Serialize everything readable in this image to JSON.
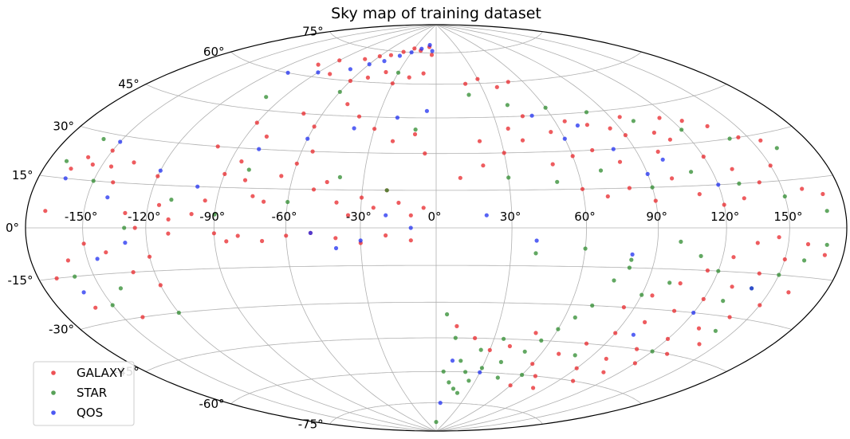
{
  "chart_data": {
    "type": "scatter",
    "projection": "aitoff-hammer",
    "title": "Sky map of training dataset",
    "x_ticks": [
      "-150°",
      "-120°",
      "-90°",
      "-60°",
      "-30°",
      "0°",
      "30°",
      "60°",
      "90°",
      "120°",
      "150°"
    ],
    "y_ticks": [
      "75°",
      "60°",
      "45°",
      "30°",
      "15°",
      "0°",
      "-15°",
      "-30°",
      "-45°",
      "-60°",
      "-75°"
    ],
    "xlim": [
      -180,
      180
    ],
    "ylim": [
      -90,
      90
    ],
    "grid": true,
    "legend_position": "lower-left",
    "series": [
      {
        "name": "GALAXY",
        "color": "#e8262a",
        "points": [
          [
            -170,
            5
          ],
          [
            -165,
            18
          ],
          [
            -160,
            22
          ],
          [
            -155,
            20
          ],
          [
            -150,
            25
          ],
          [
            -145,
            20
          ],
          [
            -140,
            15
          ],
          [
            -135,
            22
          ],
          [
            -130,
            5
          ],
          [
            -125,
            0
          ],
          [
            -120,
            18
          ],
          [
            -115,
            8
          ],
          [
            -110,
            -2
          ],
          [
            -160,
            -10
          ],
          [
            -150,
            -5
          ],
          [
            -140,
            -8
          ],
          [
            -130,
            -15
          ],
          [
            -120,
            -10
          ],
          [
            -110,
            3
          ],
          [
            -100,
            5
          ],
          [
            -95,
            10
          ],
          [
            -90,
            20
          ],
          [
            -85,
            25
          ],
          [
            -80,
            18
          ],
          [
            -75,
            12
          ],
          [
            -70,
            10
          ],
          [
            -65,
            20
          ],
          [
            -60,
            25
          ],
          [
            -55,
            30
          ],
          [
            -50,
            15
          ],
          [
            -45,
            18
          ],
          [
            -40,
            10
          ],
          [
            -35,
            5
          ],
          [
            -30,
            12
          ],
          [
            -25,
            8
          ],
          [
            -20,
            15
          ],
          [
            -15,
            10
          ],
          [
            -10,
            5
          ],
          [
            -5,
            8
          ],
          [
            -90,
            -2
          ],
          [
            -85,
            -5
          ],
          [
            -80,
            -3
          ],
          [
            -70,
            -5
          ],
          [
            -60,
            -3
          ],
          [
            -50,
            -2
          ],
          [
            -40,
            -4
          ],
          [
            -30,
            -6
          ],
          [
            -20,
            -3
          ],
          [
            -10,
            -5
          ],
          [
            -100,
            30
          ],
          [
            -90,
            40
          ],
          [
            -80,
            35
          ],
          [
            -70,
            45
          ],
          [
            -60,
            40
          ],
          [
            -50,
            50
          ],
          [
            -40,
            45
          ],
          [
            -30,
            40
          ],
          [
            -20,
            35
          ],
          [
            -10,
            38
          ],
          [
            -5,
            30
          ],
          [
            -60,
            60
          ],
          [
            -50,
            62
          ],
          [
            -40,
            65
          ],
          [
            -30,
            60
          ],
          [
            -20,
            63
          ],
          [
            -10,
            65
          ],
          [
            -70,
            70
          ],
          [
            -60,
            72
          ],
          [
            -50,
            73
          ],
          [
            -40,
            75
          ],
          [
            -30,
            77
          ],
          [
            -20,
            76
          ],
          [
            -10,
            78
          ],
          [
            -5,
            74
          ],
          [
            -80,
            62
          ],
          [
            -100,
            65
          ],
          [
            -90,
            68
          ],
          [
            10,
            20
          ],
          [
            20,
            25
          ],
          [
            30,
            30
          ],
          [
            40,
            35
          ],
          [
            50,
            25
          ],
          [
            60,
            28
          ],
          [
            70,
            30
          ],
          [
            80,
            25
          ],
          [
            90,
            35
          ],
          [
            100,
            28
          ],
          [
            110,
            32
          ],
          [
            120,
            25
          ],
          [
            130,
            20
          ],
          [
            140,
            15
          ],
          [
            150,
            20
          ],
          [
            160,
            12
          ],
          [
            170,
            10
          ],
          [
            20,
            35
          ],
          [
            35,
            40
          ],
          [
            45,
            45
          ],
          [
            55,
            38
          ],
          [
            65,
            42
          ],
          [
            75,
            40
          ],
          [
            85,
            38
          ],
          [
            95,
            42
          ],
          [
            105,
            35
          ],
          [
            115,
            40
          ],
          [
            125,
            38
          ],
          [
            135,
            35
          ],
          [
            145,
            30
          ],
          [
            155,
            28
          ],
          [
            60,
            15
          ],
          [
            70,
            12
          ],
          [
            80,
            15
          ],
          [
            90,
            10
          ],
          [
            100,
            18
          ],
          [
            110,
            12
          ],
          [
            120,
            8
          ],
          [
            130,
            10
          ],
          [
            20,
            60
          ],
          [
            30,
            62
          ],
          [
            40,
            58
          ],
          [
            50,
            60
          ],
          [
            10,
            -40
          ],
          [
            20,
            -45
          ],
          [
            30,
            -50
          ],
          [
            40,
            -48
          ],
          [
            50,
            -42
          ],
          [
            60,
            -55
          ],
          [
            70,
            -50
          ],
          [
            80,
            -45
          ],
          [
            90,
            -40
          ],
          [
            100,
            -35
          ],
          [
            110,
            -30
          ],
          [
            120,
            -25
          ],
          [
            130,
            -20
          ],
          [
            140,
            -15
          ],
          [
            150,
            -10
          ],
          [
            160,
            -5
          ],
          [
            170,
            -8
          ],
          [
            90,
            -55
          ],
          [
            100,
            -50
          ],
          [
            110,
            -45
          ],
          [
            120,
            -40
          ],
          [
            130,
            -35
          ],
          [
            140,
            -30
          ],
          [
            150,
            -25
          ],
          [
            160,
            -20
          ],
          [
            100,
            -60
          ],
          [
            110,
            -55
          ],
          [
            120,
            -50
          ],
          [
            130,
            -45
          ],
          [
            140,
            -40
          ],
          [
            85,
            -30
          ],
          [
            95,
            -25
          ],
          [
            105,
            -20
          ],
          [
            115,
            -15
          ],
          [
            125,
            -10
          ],
          [
            135,
            -5
          ],
          [
            145,
            -3
          ],
          [
            80,
            -65
          ],
          [
            70,
            -60
          ],
          [
            60,
            -65
          ],
          [
            -170,
            -15
          ],
          [
            -160,
            -25
          ],
          [
            -140,
            -30
          ],
          [
            -120,
            -20
          ]
        ]
      },
      {
        "name": "STAR",
        "color": "#2e8b2e",
        "points": [
          [
            -170,
            20
          ],
          [
            -160,
            28
          ],
          [
            -150,
            15
          ],
          [
            -130,
            0
          ],
          [
            -110,
            10
          ],
          [
            -90,
            5
          ],
          [
            -80,
            22
          ],
          [
            -60,
            10
          ],
          [
            -40,
            20
          ],
          [
            -20,
            15
          ],
          [
            -100,
            50
          ],
          [
            -60,
            55
          ],
          [
            -30,
            65
          ],
          [
            -10,
            40
          ],
          [
            20,
            55
          ],
          [
            40,
            50
          ],
          [
            60,
            48
          ],
          [
            80,
            45
          ],
          [
            100,
            40
          ],
          [
            120,
            35
          ],
          [
            140,
            30
          ],
          [
            160,
            25
          ],
          [
            30,
            20
          ],
          [
            50,
            18
          ],
          [
            70,
            22
          ],
          [
            90,
            15
          ],
          [
            110,
            20
          ],
          [
            130,
            15
          ],
          [
            150,
            10
          ],
          [
            170,
            5
          ],
          [
            5,
            -35
          ],
          [
            10,
            -45
          ],
          [
            15,
            -55
          ],
          [
            20,
            -60
          ],
          [
            25,
            -50
          ],
          [
            30,
            -58
          ],
          [
            35,
            -45
          ],
          [
            40,
            -55
          ],
          [
            45,
            -62
          ],
          [
            50,
            -50
          ],
          [
            55,
            -45
          ],
          [
            60,
            -40
          ],
          [
            65,
            -35
          ],
          [
            70,
            -30
          ],
          [
            75,
            -20
          ],
          [
            80,
            -15
          ],
          [
            90,
            -25
          ],
          [
            100,
            -20
          ],
          [
            110,
            -10
          ],
          [
            120,
            -15
          ],
          [
            130,
            -25
          ],
          [
            140,
            -20
          ],
          [
            150,
            -15
          ],
          [
            160,
            -10
          ],
          [
            170,
            -5
          ],
          [
            5,
            -60
          ],
          [
            10,
            -65
          ],
          [
            15,
            -68
          ],
          [
            20,
            -70
          ],
          [
            25,
            -64
          ],
          [
            -140,
            -20
          ],
          [
            -120,
            -30
          ],
          [
            -160,
            -15
          ],
          [
            -150,
            -25
          ],
          [
            40,
            -10
          ],
          [
            60,
            -8
          ],
          [
            80,
            -12
          ],
          [
            100,
            -5
          ],
          [
            140,
            -35
          ],
          [
            120,
            -45
          ],
          [
            0,
            -85
          ],
          [
            60,
            -60
          ],
          [
            80,
            -50
          ]
        ]
      },
      {
        "name": "QOS",
        "color": "#1f2ff0",
        "points": [
          [
            -165,
            15
          ],
          [
            -150,
            28
          ],
          [
            -140,
            10
          ],
          [
            -120,
            20
          ],
          [
            -100,
            15
          ],
          [
            -80,
            30
          ],
          [
            -60,
            35
          ],
          [
            -40,
            40
          ],
          [
            -20,
            45
          ],
          [
            -5,
            48
          ],
          [
            -50,
            70
          ],
          [
            -40,
            73
          ],
          [
            -30,
            75
          ],
          [
            -20,
            77
          ],
          [
            -10,
            79
          ],
          [
            -5,
            76
          ],
          [
            -60,
            68
          ],
          [
            -70,
            65
          ],
          [
            -90,
            62
          ],
          [
            -110,
            60
          ],
          [
            -20,
            5
          ],
          [
            -10,
            0
          ],
          [
            -30,
            -5
          ],
          [
            -40,
            -8
          ],
          [
            -50,
            -2
          ],
          [
            -130,
            -5
          ],
          [
            -145,
            -10
          ],
          [
            -160,
            -20
          ],
          [
            20,
            5
          ],
          [
            40,
            -5
          ],
          [
            60,
            35
          ],
          [
            80,
            30
          ],
          [
            100,
            25
          ],
          [
            120,
            15
          ],
          [
            140,
            -20
          ],
          [
            120,
            -30
          ],
          [
            100,
            -40
          ],
          [
            80,
            -10
          ],
          [
            10,
            -55
          ],
          [
            30,
            -60
          ],
          [
            5,
            -75
          ],
          [
            90,
            20
          ],
          [
            70,
            40
          ],
          [
            50,
            45
          ]
        ]
      }
    ]
  }
}
